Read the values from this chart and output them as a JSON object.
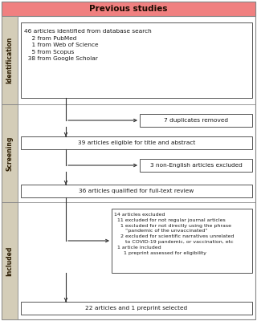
{
  "title": "Previous studies",
  "title_bg": "#f08080",
  "title_text_color": "#1a0a00",
  "box_bg": "#ffffff",
  "box_border": "#555555",
  "side_label_bg": "#d4cdb8",
  "fig_bg": "#ffffff",
  "outer_border": "#888888",
  "box1_text": "46 articles identified from database search\n    2 from PubMed\n    1 from Web of Science\n    5 from Scopus\n  38 from Google Scholar",
  "box2_text": "7 duplicates removed",
  "box3_text": "39 articles eligible for title and abstract",
  "box4_text": "3 non-English articles excluded",
  "box5_text": "36 articles qualified for full-text review",
  "box6_line1": "14 articles excluded",
  "box6_line2": "  11 excluded for not regular journal articles",
  "box6_line3": "    1 excluded for not directly using the phrase",
  "box6_line4": "       “pandemic of the unvaccinated”",
  "box6_line5": "    2 excluded for scientific narratives unrelated",
  "box6_line6": "       to COVID-19 pandemic, or vaccination, etc",
  "box6_line7": "  1 article included",
  "box6_line8": "      1 preprint assessed for eligibility",
  "box7_text": "22 articles and 1 preprint selected",
  "label_identification": "Identification",
  "label_screening": "Screening",
  "label_included": "Included"
}
